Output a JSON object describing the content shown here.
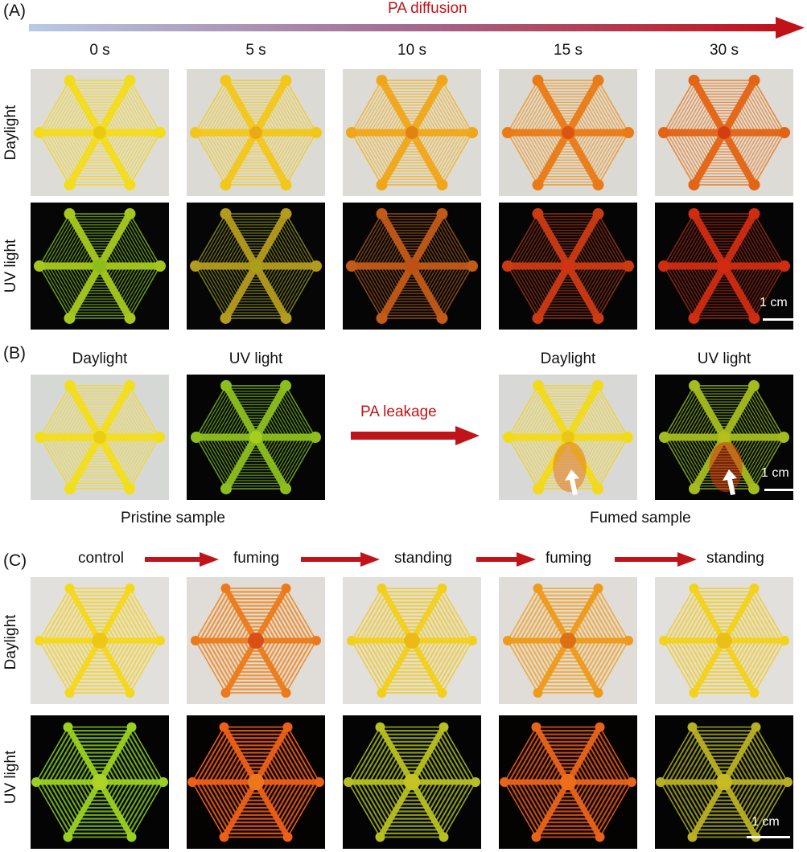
{
  "panels": {
    "A": {
      "label": "(A)",
      "arrow_label": "PA diffusion",
      "columns": [
        "0 s",
        "5 s",
        "10 s",
        "15 s",
        "30 s"
      ],
      "rows": [
        "Daylight",
        "UV light"
      ],
      "scale_label": "1 cm"
    },
    "B": {
      "label": "(B)",
      "left_columns": [
        "Daylight",
        "UV light"
      ],
      "right_columns": [
        "Daylight",
        "UV light"
      ],
      "arrow_label": "PA leakage",
      "left_caption": "Pristine sample",
      "right_caption": "Fumed sample",
      "scale_label": "1 cm"
    },
    "C": {
      "label": "(C)",
      "steps": [
        "control",
        "fuming",
        "standing",
        "fuming",
        "standing"
      ],
      "rows": [
        "Daylight",
        "UV light"
      ],
      "scale_label": "1 cm"
    }
  },
  "colors": {
    "accent_red": "#c0141a",
    "daylight_bg": "#dedcd6",
    "uv_bg": "#060806",
    "yellow": "#f2d91a",
    "orange": "#f08a14",
    "red": "#d83a12",
    "green": "#8fbf1e"
  }
}
